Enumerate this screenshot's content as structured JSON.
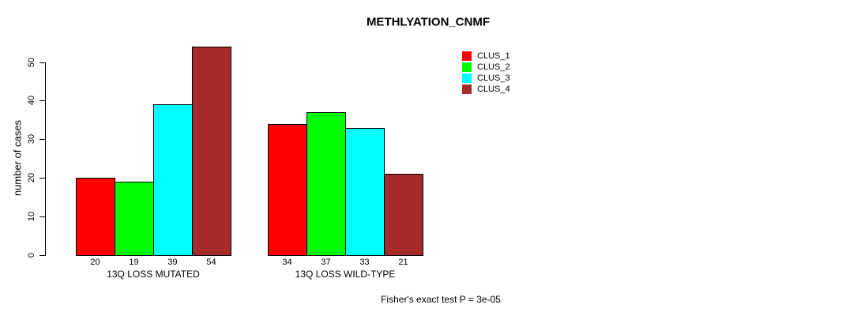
{
  "title": "METHLYATION_CNMF",
  "annotation": "Fisher's exact test P = 3e-05",
  "chart_data": {
    "type": "bar",
    "grouped": true,
    "categories": [
      "13Q LOSS MUTATED",
      "13Q LOSS WILD-TYPE"
    ],
    "series": [
      {
        "name": "CLUS_1",
        "color": "#FF0000",
        "values": [
          20,
          34
        ]
      },
      {
        "name": "CLUS_2",
        "color": "#00FF00",
        "values": [
          19,
          37
        ]
      },
      {
        "name": "CLUS_3",
        "color": "#00FFFF",
        "values": [
          39,
          33
        ]
      },
      {
        "name": "CLUS_4",
        "color": "#A52A2A",
        "values": [
          54,
          21
        ]
      }
    ],
    "xlabel": "",
    "ylabel": "number of cases",
    "yticks": [
      0,
      10,
      20,
      30,
      40,
      50
    ],
    "ylim": [
      0,
      55
    ],
    "grid": false,
    "bar_value_labels": true,
    "legend_position": "top-right",
    "bar_border_color": "#000000"
  }
}
